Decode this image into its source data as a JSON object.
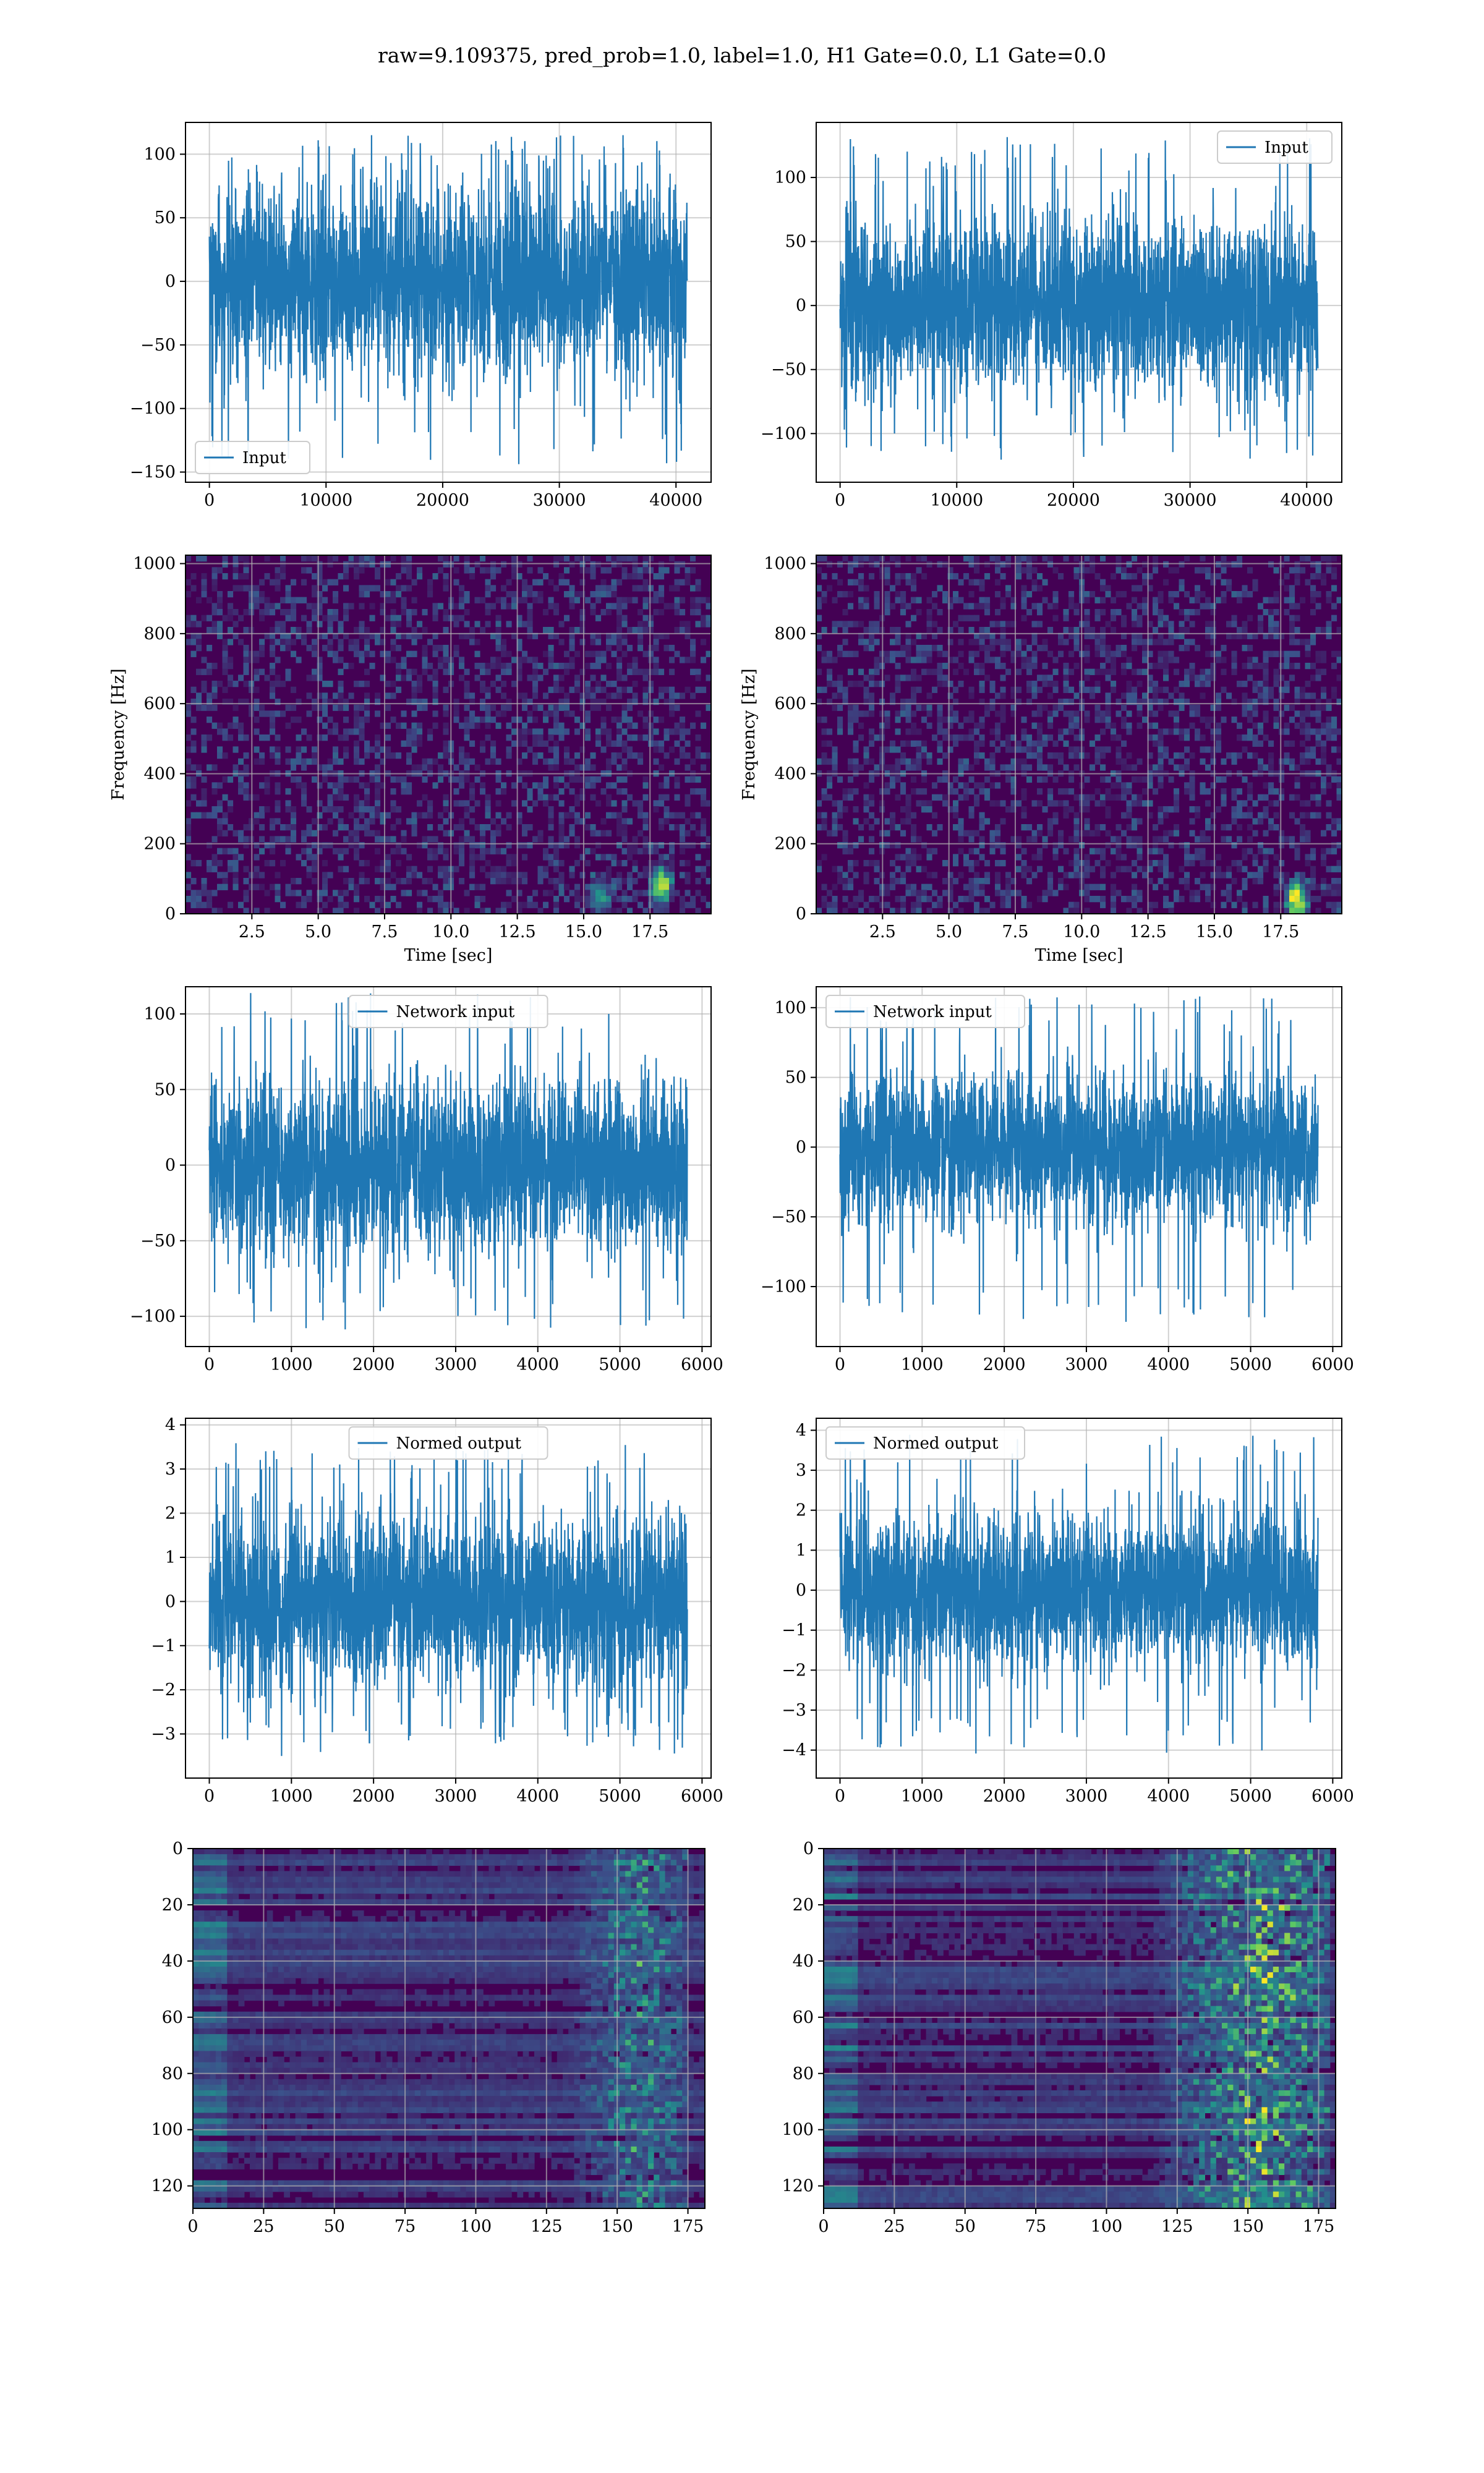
{
  "title": "raw=9.109375, pred_prob=1.0, label=1.0, H1 Gate=0.0, L1 Gate=0.0",
  "colors": {
    "line": "#1f77b4",
    "grid": "#b0b0b0",
    "heat_low": "#440154",
    "heat_high": "#fde725"
  },
  "chart_data": [
    {
      "type": "line",
      "xlim": [
        -2048,
        43008
      ],
      "ylim": [
        -158,
        125
      ],
      "xticks": [
        "0",
        "10000",
        "20000",
        "30000",
        "40000"
      ],
      "xtick_values": [
        0,
        10000,
        20000,
        30000,
        40000
      ],
      "yticks": [
        "−150",
        "−100",
        "−50",
        "0",
        "50",
        "100"
      ],
      "ytick_values": [
        -150,
        -100,
        -50,
        0,
        50,
        100
      ],
      "x_range": [
        0,
        40960
      ],
      "amplitude": 70,
      "spike_max": 115,
      "spike_min": -145,
      "legend": {
        "label": "Input",
        "loc": "lower-left"
      },
      "grid": true
    },
    {
      "type": "line",
      "xlim": [
        -2048,
        43008
      ],
      "ylim": [
        -138,
        143
      ],
      "xticks": [
        "0",
        "10000",
        "20000",
        "30000",
        "40000"
      ],
      "xtick_values": [
        0,
        10000,
        20000,
        30000,
        40000
      ],
      "yticks": [
        "−100",
        "−50",
        "0",
        "50",
        "100"
      ],
      "ytick_values": [
        -100,
        -50,
        0,
        50,
        100
      ],
      "x_range": [
        0,
        40960
      ],
      "amplitude": 65,
      "spike_max": 132,
      "spike_min": -125,
      "legend": {
        "label": "Input",
        "loc": "upper-right"
      },
      "grid": true
    },
    {
      "type": "heatmap",
      "xlim": [
        0,
        19.8
      ],
      "ylim": [
        0,
        1024
      ],
      "xticks": [
        "2.5",
        "5.0",
        "7.5",
        "10.0",
        "12.5",
        "15.0",
        "17.5"
      ],
      "xtick_values": [
        2.5,
        5,
        7.5,
        10,
        12.5,
        15,
        17.5
      ],
      "yticks": [
        "0",
        "200",
        "400",
        "600",
        "800",
        "1000"
      ],
      "ytick_values": [
        0,
        200,
        400,
        600,
        800,
        1000
      ],
      "xlabel": "Time [sec]",
      "ylabel": "Frequency [Hz]",
      "grid": true,
      "hotspots": [
        {
          "x": 17.9,
          "y": 80,
          "strength": 0.9
        },
        {
          "x": 15.6,
          "y": 50,
          "strength": 0.5
        }
      ]
    },
    {
      "type": "heatmap",
      "xlim": [
        0,
        19.8
      ],
      "ylim": [
        0,
        1024
      ],
      "xticks": [
        "2.5",
        "5.0",
        "7.5",
        "10.0",
        "12.5",
        "15.0",
        "17.5"
      ],
      "xtick_values": [
        2.5,
        5,
        7.5,
        10,
        12.5,
        15,
        17.5
      ],
      "yticks": [
        "0",
        "200",
        "400",
        "600",
        "800",
        "1000"
      ],
      "ytick_values": [
        0,
        200,
        400,
        600,
        800,
        1000
      ],
      "xlabel": "Time [sec]",
      "ylabel": "Frequency [Hz]",
      "grid": true,
      "hotspots": [
        {
          "x": 18.1,
          "y": 40,
          "strength": 0.95
        }
      ]
    },
    {
      "type": "line",
      "xlim": [
        -290,
        6110
      ],
      "ylim": [
        -120,
        118
      ],
      "xticks": [
        "0",
        "1000",
        "2000",
        "3000",
        "4000",
        "5000",
        "6000"
      ],
      "xtick_values": [
        0,
        1000,
        2000,
        3000,
        4000,
        5000,
        6000
      ],
      "yticks": [
        "−100",
        "−50",
        "0",
        "50",
        "100"
      ],
      "ytick_values": [
        -100,
        -50,
        0,
        50,
        100
      ],
      "x_range": [
        0,
        5820
      ],
      "amplitude": 55,
      "spike_max": 115,
      "spike_min": -110,
      "legend": {
        "label": "Network input",
        "loc": "upper-center"
      },
      "grid": true
    },
    {
      "type": "line",
      "xlim": [
        -290,
        6110
      ],
      "ylim": [
        -143,
        115
      ],
      "xticks": [
        "0",
        "1000",
        "2000",
        "3000",
        "4000",
        "5000",
        "6000"
      ],
      "xtick_values": [
        0,
        1000,
        2000,
        3000,
        4000,
        5000,
        6000
      ],
      "yticks": [
        "−100",
        "−50",
        "0",
        "50",
        "100"
      ],
      "ytick_values": [
        -100,
        -50,
        0,
        50,
        100
      ],
      "x_range": [
        0,
        5820
      ],
      "amplitude": 50,
      "spike_max": 108,
      "spike_min": -128,
      "legend": {
        "label": "Network input",
        "loc": "upper-left"
      },
      "grid": true
    },
    {
      "type": "line",
      "xlim": [
        -290,
        6110
      ],
      "ylim": [
        -4.0,
        4.15
      ],
      "xticks": [
        "0",
        "1000",
        "2000",
        "3000",
        "4000",
        "5000",
        "6000"
      ],
      "xtick_values": [
        0,
        1000,
        2000,
        3000,
        4000,
        5000,
        6000
      ],
      "yticks": [
        "−3",
        "−2",
        "−1",
        "0",
        "1",
        "2",
        "3",
        "4"
      ],
      "ytick_values": [
        -3,
        -2,
        -1,
        0,
        1,
        2,
        3,
        4
      ],
      "x_range": [
        0,
        5820
      ],
      "amplitude": 1.9,
      "spike_max": 3.7,
      "spike_min": -3.5,
      "legend": {
        "label": "Normed output",
        "loc": "upper-center"
      },
      "grid": true
    },
    {
      "type": "line",
      "xlim": [
        -290,
        6110
      ],
      "ylim": [
        -4.7,
        4.3
      ],
      "xticks": [
        "0",
        "1000",
        "2000",
        "3000",
        "4000",
        "5000",
        "6000"
      ],
      "xtick_values": [
        0,
        1000,
        2000,
        3000,
        4000,
        5000,
        6000
      ],
      "yticks": [
        "−4",
        "−3",
        "−2",
        "−1",
        "0",
        "1",
        "2",
        "3",
        "4"
      ],
      "ytick_values": [
        -4,
        -3,
        -2,
        -1,
        0,
        1,
        2,
        3,
        4
      ],
      "x_range": [
        0,
        5820
      ],
      "amplitude": 1.8,
      "spike_max": 3.9,
      "spike_min": -4.1,
      "legend": {
        "label": "Normed output",
        "loc": "upper-left"
      },
      "grid": true
    },
    {
      "type": "heatmap",
      "xlim": [
        0,
        181
      ],
      "ylim": [
        128,
        0
      ],
      "xticks": [
        "0",
        "25",
        "50",
        "75",
        "100",
        "125",
        "150",
        "175"
      ],
      "xtick_values": [
        0,
        25,
        50,
        75,
        100,
        125,
        150,
        175
      ],
      "yticks": [
        "0",
        "20",
        "40",
        "60",
        "80",
        "100",
        "120"
      ],
      "ytick_values": [
        0,
        20,
        40,
        60,
        80,
        100,
        120
      ],
      "grid": true,
      "hot_column_range": [
        125,
        175
      ],
      "hot_column_peak": 158,
      "intensity": 0.55
    },
    {
      "type": "heatmap",
      "xlim": [
        0,
        181
      ],
      "ylim": [
        128,
        0
      ],
      "xticks": [
        "0",
        "25",
        "50",
        "75",
        "100",
        "125",
        "150",
        "175"
      ],
      "xtick_values": [
        0,
        25,
        50,
        75,
        100,
        125,
        150,
        175
      ],
      "yticks": [
        "0",
        "20",
        "40",
        "60",
        "80",
        "100",
        "120"
      ],
      "ytick_values": [
        0,
        20,
        40,
        60,
        80,
        100,
        120
      ],
      "grid": true,
      "hot_column_range": [
        100,
        178
      ],
      "hot_column_peak": 155,
      "intensity": 0.9
    }
  ]
}
